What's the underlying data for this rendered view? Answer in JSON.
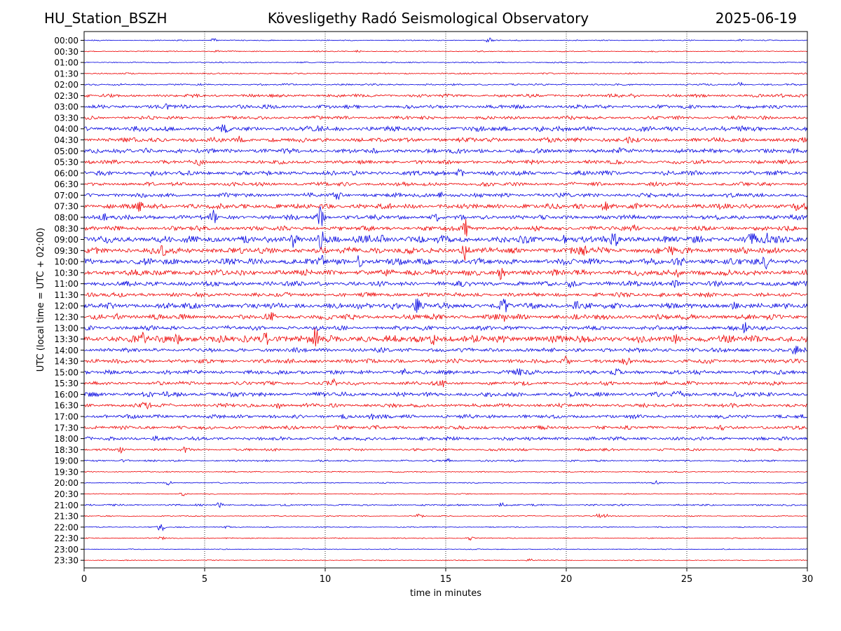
{
  "header": {
    "station": "HU_Station_BSZH",
    "title": "Kövesligethy Radó Seismological Observatory",
    "date": "2025-06-19"
  },
  "chart_data": {
    "type": "line",
    "chart_kind": "helicorder",
    "xlabel": "time in minutes",
    "ylabel": "UTC (local time = UTC + 02:00)",
    "xlim": [
      0,
      30
    ],
    "x_ticks": [
      "0",
      "5",
      "10",
      "15",
      "20",
      "25",
      "30"
    ],
    "grid": "vertical dotted lines at 5-minute intervals",
    "trace_colors": [
      "#0000e0",
      "#ee0000"
    ],
    "rows": [
      {
        "label": "00:00",
        "activity": 0.6,
        "events": [
          [
            5.35,
            3
          ],
          [
            16.8,
            3
          ],
          [
            27.3,
            1.5
          ]
        ]
      },
      {
        "label": "00:30",
        "activity": 0.6,
        "events": [
          [
            5.5,
            1.5
          ],
          [
            11.4,
            2
          ]
        ]
      },
      {
        "label": "01:00",
        "activity": 0.7,
        "events": []
      },
      {
        "label": "01:30",
        "activity": 0.8,
        "events": []
      },
      {
        "label": "02:00",
        "activity": 1.0,
        "events": [
          [
            27.2,
            3.5
          ]
        ]
      },
      {
        "label": "02:30",
        "activity": 1.8,
        "events": [
          [
            22.8,
            2.5
          ],
          [
            29.7,
            2
          ]
        ]
      },
      {
        "label": "03:00",
        "activity": 2.2,
        "events": [
          [
            3.5,
            4
          ]
        ]
      },
      {
        "label": "03:30",
        "activity": 2.0,
        "events": []
      },
      {
        "label": "04:00",
        "activity": 2.8,
        "events": [
          [
            5.8,
            4
          ],
          [
            9.8,
            3.5
          ],
          [
            18.9,
            4.5
          ],
          [
            27.3,
            4
          ]
        ]
      },
      {
        "label": "04:30",
        "activity": 2.6,
        "events": [
          [
            6.5,
            4
          ],
          [
            22.6,
            3.5
          ]
        ]
      },
      {
        "label": "05:00",
        "activity": 2.6,
        "events": [
          [
            2.6,
            4
          ],
          [
            22.1,
            3.5
          ]
        ]
      },
      {
        "label": "05:30",
        "activity": 2.2,
        "events": [
          [
            4.8,
            3
          ]
        ]
      },
      {
        "label": "06:00",
        "activity": 2.6,
        "events": [
          [
            2.8,
            3
          ],
          [
            15.6,
            5
          ]
        ]
      },
      {
        "label": "06:30",
        "activity": 2.2,
        "events": []
      },
      {
        "label": "07:00",
        "activity": 2.4,
        "events": [
          [
            10.5,
            4
          ],
          [
            14.8,
            4
          ]
        ]
      },
      {
        "label": "07:30",
        "activity": 3.0,
        "events": [
          [
            2.3,
            6
          ],
          [
            21.6,
            6
          ],
          [
            29.5,
            5
          ]
        ]
      },
      {
        "label": "08:00",
        "activity": 2.6,
        "events": [
          [
            0.8,
            6
          ],
          [
            5.4,
            9
          ],
          [
            9.8,
            14
          ],
          [
            14.6,
            5
          ]
        ]
      },
      {
        "label": "08:30",
        "activity": 2.6,
        "events": [
          [
            15.8,
            13
          ],
          [
            22.8,
            5
          ]
        ]
      },
      {
        "label": "09:00",
        "activity": 4.0,
        "events": [
          [
            8.7,
            10
          ],
          [
            9.8,
            15
          ],
          [
            11.8,
            9
          ],
          [
            12.3,
            10
          ],
          [
            19.9,
            8
          ],
          [
            22.0,
            9
          ],
          [
            27.7,
            7
          ],
          [
            28.3,
            8
          ]
        ]
      },
      {
        "label": "09:30",
        "activity": 3.6,
        "events": [
          [
            3.3,
            6
          ],
          [
            12.1,
            8
          ],
          [
            15.8,
            13
          ],
          [
            20.7,
            9
          ],
          [
            24.3,
            8
          ]
        ]
      },
      {
        "label": "10:00",
        "activity": 3.6,
        "events": [
          [
            9.9,
            7
          ],
          [
            11.4,
            8
          ],
          [
            24.8,
            6
          ],
          [
            28.3,
            10
          ]
        ]
      },
      {
        "label": "10:30",
        "activity": 3.4,
        "events": [
          [
            14.5,
            6
          ],
          [
            17.3,
            7
          ],
          [
            24.6,
            5
          ]
        ]
      },
      {
        "label": "11:00",
        "activity": 2.8,
        "events": [
          [
            20.2,
            5
          ],
          [
            24.5,
            5
          ]
        ]
      },
      {
        "label": "11:30",
        "activity": 2.4,
        "events": [
          [
            24.0,
            3
          ]
        ]
      },
      {
        "label": "12:00",
        "activity": 3.2,
        "events": [
          [
            12.9,
            6
          ],
          [
            13.8,
            7
          ],
          [
            17.4,
            10
          ],
          [
            20.4,
            6
          ],
          [
            27.0,
            5
          ]
        ]
      },
      {
        "label": "12:30",
        "activity": 3.0,
        "events": [
          [
            1.3,
            4
          ],
          [
            7.8,
            5
          ],
          [
            17.4,
            6
          ]
        ]
      },
      {
        "label": "13:00",
        "activity": 2.6,
        "events": [
          [
            27.4,
            7
          ]
        ]
      },
      {
        "label": "13:30",
        "activity": 4.2,
        "events": [
          [
            2.5,
            7
          ],
          [
            3.9,
            8
          ],
          [
            7.5,
            11
          ],
          [
            9.6,
            13
          ],
          [
            14.5,
            8
          ],
          [
            24.6,
            6
          ]
        ]
      },
      {
        "label": "14:00",
        "activity": 2.4,
        "events": [
          [
            29.5,
            5
          ]
        ]
      },
      {
        "label": "14:30",
        "activity": 2.4,
        "events": [
          [
            20.0,
            5
          ],
          [
            22.5,
            4
          ]
        ]
      },
      {
        "label": "15:00",
        "activity": 2.4,
        "events": [
          [
            13.3,
            4
          ],
          [
            18.0,
            5
          ],
          [
            22.1,
            4
          ]
        ]
      },
      {
        "label": "15:30",
        "activity": 2.2,
        "events": [
          [
            10.4,
            4
          ],
          [
            14.9,
            4
          ]
        ]
      },
      {
        "label": "16:00",
        "activity": 2.6,
        "events": [
          [
            3.4,
            4
          ],
          [
            24.6,
            4
          ]
        ]
      },
      {
        "label": "16:30",
        "activity": 2.2,
        "events": [
          [
            2.6,
            6
          ],
          [
            8.0,
            6
          ]
        ]
      },
      {
        "label": "17:00",
        "activity": 2.2,
        "events": [
          [
            10.8,
            4
          ],
          [
            11.9,
            4
          ]
        ]
      },
      {
        "label": "17:30",
        "activity": 2.0,
        "events": [
          [
            10.5,
            3
          ],
          [
            26.5,
            3
          ]
        ]
      },
      {
        "label": "18:00",
        "activity": 2.0,
        "events": [
          [
            3.0,
            5
          ]
        ]
      },
      {
        "label": "18:30",
        "activity": 1.4,
        "events": [
          [
            1.5,
            4
          ],
          [
            4.2,
            3
          ]
        ]
      },
      {
        "label": "19:00",
        "activity": 1.0,
        "events": [
          [
            1.7,
            4
          ],
          [
            15.1,
            3
          ]
        ]
      },
      {
        "label": "19:30",
        "activity": 0.7,
        "events": []
      },
      {
        "label": "20:00",
        "activity": 0.6,
        "events": [
          [
            3.5,
            3
          ],
          [
            23.7,
            3
          ]
        ]
      },
      {
        "label": "20:30",
        "activity": 0.6,
        "events": [
          [
            4.1,
            3
          ]
        ]
      },
      {
        "label": "21:00",
        "activity": 1.0,
        "events": [
          [
            5.6,
            3
          ],
          [
            17.3,
            3
          ]
        ]
      },
      {
        "label": "21:30",
        "activity": 0.6,
        "events": [
          [
            13.9,
            3
          ],
          [
            21.3,
            3
          ],
          [
            21.6,
            3
          ]
        ]
      },
      {
        "label": "22:00",
        "activity": 0.6,
        "events": [
          [
            3.2,
            6
          ],
          [
            5.9,
            2
          ]
        ]
      },
      {
        "label": "22:30",
        "activity": 0.6,
        "events": [
          [
            3.2,
            3
          ],
          [
            16.0,
            3
          ]
        ]
      },
      {
        "label": "23:00",
        "activity": 0.5,
        "events": []
      },
      {
        "label": "23:30",
        "activity": 0.5,
        "events": [
          [
            18.5,
            2
          ]
        ]
      }
    ]
  }
}
